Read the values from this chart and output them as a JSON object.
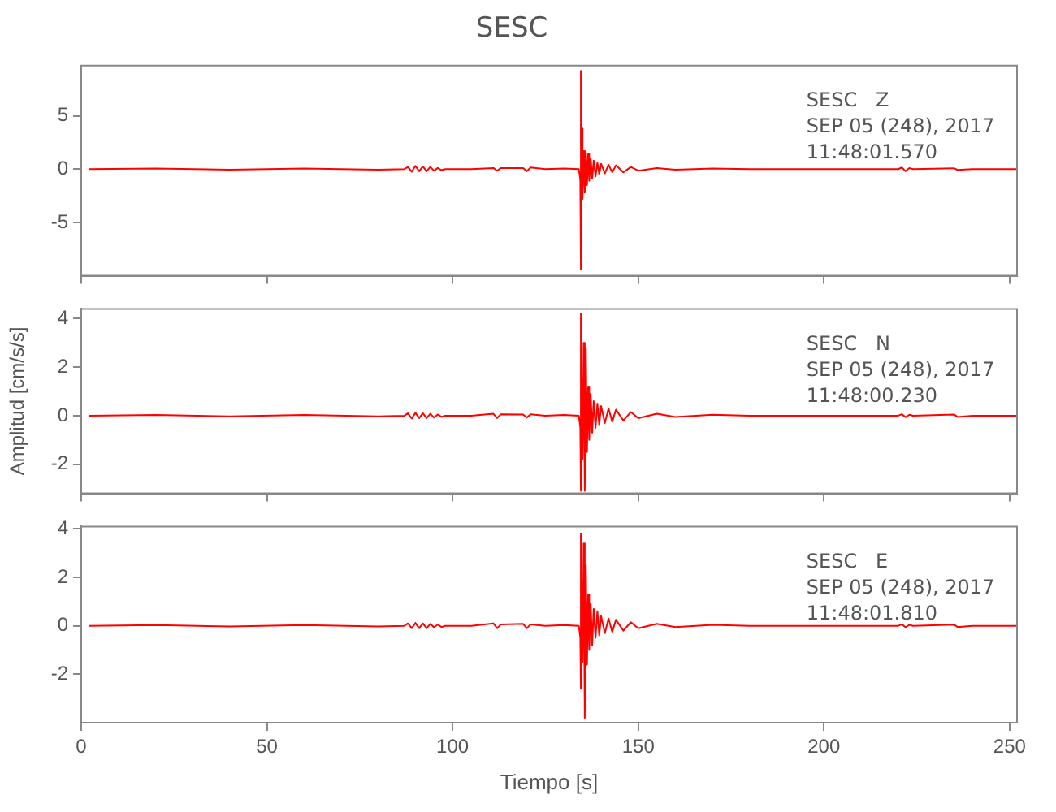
{
  "chart_data": [
    {
      "type": "line",
      "title": "SESC",
      "tick_labels": "y",
      "xlim": [
        0,
        252
      ],
      "xticks": [
        0,
        50,
        100,
        150,
        200,
        250
      ],
      "ylim": [
        -10,
        9.7
      ],
      "yticks": [
        -5,
        0,
        5
      ],
      "annotations": [
        "SESC   Z",
        "SEP 05 (248), 2017",
        "11:48:01.570"
      ],
      "x": [
        2,
        20,
        40,
        60,
        80,
        87,
        88,
        89,
        90,
        91,
        92,
        93,
        94,
        95,
        96,
        97,
        98,
        105,
        111,
        112,
        113,
        119,
        120,
        121,
        125,
        130,
        134,
        134.4,
        134.5,
        134.6,
        134.8,
        135,
        135.3,
        135.6,
        135.9,
        136.2,
        136.5,
        136.8,
        137.2,
        137.6,
        138,
        138.5,
        139,
        139.5,
        140,
        141,
        142,
        143,
        144,
        146,
        148,
        150,
        155,
        160,
        170,
        180,
        200,
        220,
        221,
        222,
        223,
        224,
        235,
        236,
        240,
        252
      ],
      "series": [
        {
          "color": "#ff0000",
          "values": [
            0,
            0.05,
            -0.05,
            0.05,
            -0.05,
            0,
            0.2,
            -0.25,
            0.3,
            -0.2,
            0.25,
            -0.2,
            0.2,
            -0.15,
            0.1,
            -0.1,
            0,
            0,
            0.1,
            -0.15,
            0.1,
            0.1,
            -0.2,
            0.15,
            0,
            0.05,
            0,
            -1,
            9.2,
            -9.4,
            3.8,
            -2.8,
            1.7,
            -2.2,
            1.6,
            -1.5,
            1.4,
            -1.1,
            1.0,
            -0.9,
            0.8,
            -0.7,
            0.6,
            -0.5,
            0.5,
            -0.4,
            0.4,
            -0.3,
            0.35,
            -0.3,
            0.2,
            -0.15,
            0.1,
            -0.05,
            0.05,
            0,
            0,
            0,
            0.15,
            -0.2,
            0.1,
            0,
            0.08,
            -0.08,
            0,
            0
          ]
        }
      ]
    },
    {
      "type": "line",
      "ylabel": "Amplitud [cm/s/s]",
      "tick_labels": "y",
      "xlim": [
        0,
        252
      ],
      "xticks": [
        0,
        50,
        100,
        150,
        200,
        250
      ],
      "ylim": [
        -3.2,
        4.4
      ],
      "yticks": [
        -2,
        0,
        2,
        4
      ],
      "annotations": [
        "SESC   N",
        "SEP 05 (248), 2017",
        "11:48:00.230"
      ],
      "x": [
        2,
        20,
        40,
        60,
        80,
        87,
        88,
        89,
        90,
        91,
        92,
        93,
        94,
        95,
        96,
        97,
        98,
        105,
        111,
        112,
        113,
        119,
        120,
        121,
        125,
        130,
        134,
        134.4,
        134.5,
        134.6,
        134.8,
        135,
        135.3,
        135.6,
        135.9,
        136.2,
        136.5,
        136.8,
        137.2,
        137.6,
        138,
        138.5,
        139,
        139.5,
        140,
        141,
        142,
        143,
        144,
        146,
        148,
        150,
        155,
        160,
        170,
        180,
        200,
        220,
        221,
        222,
        223,
        224,
        235,
        236,
        240,
        252
      ],
      "series": [
        {
          "color": "#ff0000",
          "values": [
            0,
            0.03,
            -0.03,
            0.03,
            -0.03,
            0,
            0.1,
            -0.12,
            0.12,
            -0.1,
            0.1,
            -0.1,
            0.08,
            -0.08,
            0.05,
            -0.05,
            0,
            0,
            0.08,
            -0.1,
            0.06,
            0.05,
            -0.08,
            0.06,
            0,
            0.03,
            0,
            -0.5,
            4.2,
            -3.1,
            1.5,
            -1.8,
            3.0,
            -3.1,
            2.8,
            -1.5,
            1.2,
            -1.0,
            0.9,
            -0.7,
            0.6,
            -0.5,
            0.5,
            -0.4,
            0.4,
            -0.3,
            0.3,
            -0.25,
            0.25,
            -0.2,
            0.15,
            -0.1,
            0.08,
            -0.05,
            0.04,
            0,
            0,
            0,
            0.06,
            -0.06,
            0.04,
            0,
            0.05,
            -0.05,
            0,
            0
          ]
        }
      ]
    },
    {
      "type": "line",
      "xlabel": "Tiempo [s]",
      "xlim": [
        0,
        252
      ],
      "xticks": [
        0,
        50,
        100,
        150,
        200,
        250
      ],
      "ylim": [
        -4,
        4.1
      ],
      "yticks": [
        -2,
        0,
        2,
        4
      ],
      "annotations": [
        "SESC   E",
        "SEP 05 (248), 2017",
        "11:48:01.810"
      ],
      "x": [
        2,
        20,
        40,
        60,
        80,
        87,
        88,
        89,
        90,
        91,
        92,
        93,
        94,
        95,
        96,
        97,
        98,
        105,
        111,
        112,
        113,
        119,
        120,
        121,
        125,
        130,
        134,
        134.4,
        134.5,
        134.6,
        134.8,
        135,
        135.3,
        135.6,
        135.9,
        136.2,
        136.5,
        136.8,
        137.2,
        137.6,
        138,
        138.5,
        139,
        139.5,
        140,
        141,
        142,
        143,
        144,
        146,
        148,
        150,
        155,
        160,
        170,
        180,
        200,
        220,
        221,
        222,
        223,
        224,
        235,
        236,
        240,
        252
      ],
      "series": [
        {
          "color": "#ff0000",
          "values": [
            0,
            0.03,
            -0.03,
            0.03,
            -0.03,
            0,
            0.1,
            -0.1,
            0.12,
            -0.1,
            0.1,
            -0.1,
            0.08,
            -0.06,
            0.05,
            -0.05,
            0,
            0,
            0.1,
            -0.1,
            0.06,
            0.08,
            -0.1,
            0.06,
            0,
            0.03,
            0,
            -0.5,
            3.8,
            -2.6,
            1.8,
            -1.5,
            3.4,
            -3.8,
            2.5,
            -1.6,
            1.3,
            -1.0,
            0.9,
            -0.8,
            0.7,
            -0.5,
            0.6,
            -0.4,
            0.4,
            -0.3,
            0.3,
            -0.25,
            0.25,
            -0.2,
            0.15,
            -0.1,
            0.08,
            -0.05,
            0.04,
            0,
            0,
            0,
            0.06,
            -0.06,
            0.04,
            0,
            0.05,
            -0.05,
            0,
            0
          ]
        }
      ]
    }
  ]
}
